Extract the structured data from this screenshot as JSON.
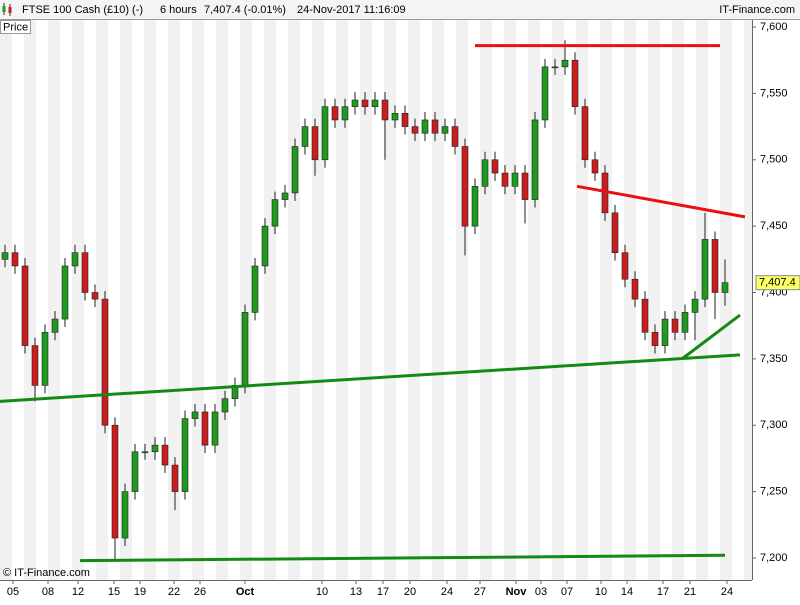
{
  "header": {
    "instrument": "FTSE 100 Cash (£10) (-)",
    "period": "6 hours",
    "quote": "7,407.4 (-0.01%)",
    "timestamp": "24-Nov-2017 11:16:09",
    "brand": "IT-Finance.com"
  },
  "chart_data": {
    "type": "candlestick",
    "panel_label": "Price",
    "copyright": "© IT-Finance.com",
    "x": [
      0,
      1,
      2,
      3,
      4,
      5,
      6,
      7,
      8,
      9,
      10,
      11,
      12,
      13,
      14,
      15,
      16,
      17,
      18,
      19,
      20,
      21,
      22,
      23,
      24,
      25,
      26,
      27,
      28,
      29,
      30,
      31,
      32,
      33,
      34,
      35,
      36,
      37,
      38,
      39,
      40,
      41,
      42,
      43,
      44,
      45,
      46,
      47,
      48,
      49,
      50,
      51,
      52,
      53,
      54,
      55,
      56,
      57,
      58,
      59,
      60,
      61,
      62,
      63,
      64,
      65,
      66,
      67,
      68,
      69,
      70,
      71,
      72
    ],
    "open": [
      7425,
      7430,
      7420,
      7360,
      7330,
      7370,
      7380,
      7420,
      7430,
      7400,
      7395,
      7300,
      7215,
      7250,
      7280,
      7280,
      7285,
      7270,
      7250,
      7305,
      7310,
      7285,
      7310,
      7320,
      7330,
      7385,
      7420,
      7450,
      7470,
      7475,
      7510,
      7525,
      7500,
      7540,
      7530,
      7540,
      7545,
      7540,
      7545,
      7530,
      7535,
      7525,
      7520,
      7530,
      7520,
      7525,
      7510,
      7450,
      7480,
      7500,
      7490,
      7480,
      7490,
      7470,
      7530,
      7570,
      7570,
      7575,
      7540,
      7500,
      7490,
      7460,
      7430,
      7410,
      7395,
      7370,
      7360,
      7380,
      7370,
      7385,
      7395,
      7440,
      7400
    ],
    "high": [
      7436,
      7436,
      7426,
      7366,
      7376,
      7386,
      7426,
      7436,
      7436,
      7406,
      7401,
      7306,
      7256,
      7286,
      7286,
      7291,
      7291,
      7276,
      7311,
      7316,
      7316,
      7316,
      7326,
      7336,
      7391,
      7426,
      7456,
      7476,
      7481,
      7516,
      7531,
      7531,
      7546,
      7546,
      7546,
      7551,
      7551,
      7551,
      7551,
      7541,
      7541,
      7531,
      7536,
      7536,
      7531,
      7531,
      7516,
      7486,
      7506,
      7506,
      7496,
      7496,
      7496,
      7536,
      7576,
      7576,
      7590,
      7581,
      7546,
      7506,
      7496,
      7466,
      7436,
      7416,
      7401,
      7376,
      7386,
      7386,
      7391,
      7401,
      7460,
      7446,
      7425
    ],
    "low": [
      7419,
      7414,
      7354,
      7318,
      7324,
      7364,
      7374,
      7414,
      7394,
      7389,
      7294,
      7198,
      7209,
      7244,
      7274,
      7274,
      7264,
      7236,
      7244,
      7299,
      7279,
      7279,
      7304,
      7314,
      7324,
      7379,
      7414,
      7444,
      7464,
      7469,
      7504,
      7488,
      7494,
      7524,
      7524,
      7534,
      7534,
      7534,
      7500,
      7524,
      7519,
      7514,
      7514,
      7514,
      7514,
      7504,
      7428,
      7444,
      7474,
      7484,
      7474,
      7474,
      7452,
      7464,
      7524,
      7564,
      7564,
      7534,
      7494,
      7484,
      7454,
      7424,
      7404,
      7389,
      7364,
      7354,
      7354,
      7364,
      7364,
      7364,
      7389,
      7380,
      7390
    ],
    "close": [
      7430,
      7420,
      7360,
      7330,
      7370,
      7380,
      7420,
      7430,
      7400,
      7395,
      7300,
      7215,
      7250,
      7280,
      7280,
      7285,
      7270,
      7250,
      7305,
      7310,
      7285,
      7310,
      7320,
      7330,
      7385,
      7420,
      7450,
      7470,
      7475,
      7510,
      7525,
      7500,
      7540,
      7530,
      7540,
      7545,
      7540,
      7545,
      7530,
      7535,
      7525,
      7520,
      7530,
      7520,
      7525,
      7510,
      7450,
      7480,
      7500,
      7490,
      7480,
      7490,
      7470,
      7530,
      7570,
      7570,
      7575,
      7540,
      7500,
      7490,
      7460,
      7430,
      7410,
      7395,
      7370,
      7360,
      7380,
      7370,
      7385,
      7395,
      7440,
      7400,
      7407.4
    ],
    "up_color": "#1f9a1f",
    "down_color": "#c81e1e",
    "last_price": {
      "value": 7407.4,
      "label": "7,407.4"
    },
    "xlim": [
      -0.5,
      74.7
    ],
    "xticks": [
      {
        "value": 0.8,
        "label": "05"
      },
      {
        "value": 4.3,
        "label": "08"
      },
      {
        "value": 7.3,
        "label": "12"
      },
      {
        "value": 10.9,
        "label": "15"
      },
      {
        "value": 13.5,
        "label": "19"
      },
      {
        "value": 16.9,
        "label": "22"
      },
      {
        "value": 19.5,
        "label": "26"
      },
      {
        "value": 24,
        "label": "Oct"
      },
      {
        "value": 31.7,
        "label": "10"
      },
      {
        "value": 35.1,
        "label": "13"
      },
      {
        "value": 37.8,
        "label": "17"
      },
      {
        "value": 40.5,
        "label": "20"
      },
      {
        "value": 44.2,
        "label": "24"
      },
      {
        "value": 47.5,
        "label": "27"
      },
      {
        "value": 51.1,
        "label": "Nov"
      },
      {
        "value": 53.6,
        "label": "03"
      },
      {
        "value": 56.2,
        "label": "07"
      },
      {
        "value": 59.6,
        "label": "10"
      },
      {
        "value": 62.2,
        "label": "14"
      },
      {
        "value": 65.8,
        "label": "17"
      },
      {
        "value": 68.5,
        "label": "21"
      },
      {
        "value": 72.2,
        "label": "24"
      }
    ],
    "ylim": [
      7183.4,
      7605.3
    ],
    "yticks": [
      {
        "value": 7200,
        "label": "7,200"
      },
      {
        "value": 7250,
        "label": "7,250"
      },
      {
        "value": 7300,
        "label": "7,300"
      },
      {
        "value": 7350,
        "label": "7,350"
      },
      {
        "value": 7400,
        "label": "7,400"
      },
      {
        "value": 7450,
        "label": "7,450"
      },
      {
        "value": 7500,
        "label": "7,500"
      },
      {
        "value": 7550,
        "label": "7,550"
      },
      {
        "value": 7600,
        "label": "7,600"
      }
    ],
    "trend_lines": [
      {
        "color": "#e81010",
        "x": [
          47,
          71.5
        ],
        "y": [
          7586,
          7586
        ]
      },
      {
        "color": "#e81010",
        "x": [
          57.2,
          74
        ],
        "y": [
          7480,
          7457
        ]
      },
      {
        "color": "#138a13",
        "x": [
          -0.5,
          73.5
        ],
        "y": [
          7318,
          7353
        ]
      },
      {
        "color": "#138a13",
        "x": [
          7.5,
          72
        ],
        "y": [
          7198,
          7202
        ]
      },
      {
        "color": "#138a13",
        "x": [
          67.7,
          73.5
        ],
        "y": [
          7350,
          7383
        ]
      }
    ]
  }
}
